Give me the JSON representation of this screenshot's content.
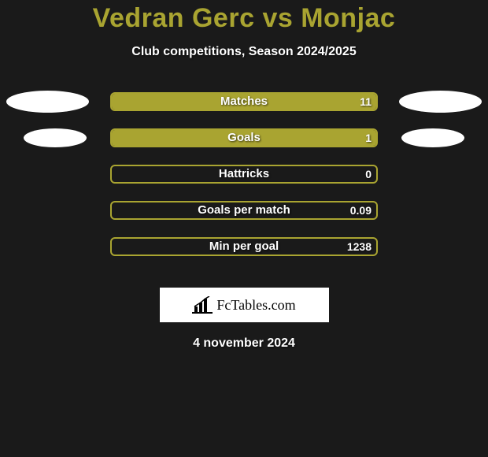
{
  "header": {
    "player1": "Vedran Gerc",
    "vs": "vs",
    "player2": "Monjac",
    "title_color": "#a9a431",
    "subtitle": "Club competitions, Season 2024/2025"
  },
  "bars": {
    "track_border_color": "#a9a431",
    "fill_color": "#a9a431",
    "rows": [
      {
        "label": "Matches",
        "left": "",
        "right": "11",
        "fill_percent": 100,
        "show_left_big": true,
        "show_right_big": true,
        "show_left_small": false,
        "show_right_small": false
      },
      {
        "label": "Goals",
        "left": "",
        "right": "1",
        "fill_percent": 100,
        "show_left_big": false,
        "show_right_big": false,
        "show_left_small": true,
        "show_right_small": true
      },
      {
        "label": "Hattricks",
        "left": "",
        "right": "0",
        "fill_percent": 0,
        "show_left_big": false,
        "show_right_big": false,
        "show_left_small": false,
        "show_right_small": false
      },
      {
        "label": "Goals per match",
        "left": "",
        "right": "0.09",
        "fill_percent": 0,
        "show_left_big": false,
        "show_right_big": false,
        "show_left_small": false,
        "show_right_small": false
      },
      {
        "label": "Min per goal",
        "left": "",
        "right": "1238",
        "fill_percent": 0,
        "show_left_big": false,
        "show_right_big": false,
        "show_left_small": false,
        "show_right_small": false
      }
    ]
  },
  "attribution": {
    "text": "FcTables.com"
  },
  "footer": {
    "date": "4 november 2024"
  },
  "colors": {
    "page_bg": "#1a1a1a",
    "text": "#ffffff",
    "oval": "#ffffff"
  }
}
